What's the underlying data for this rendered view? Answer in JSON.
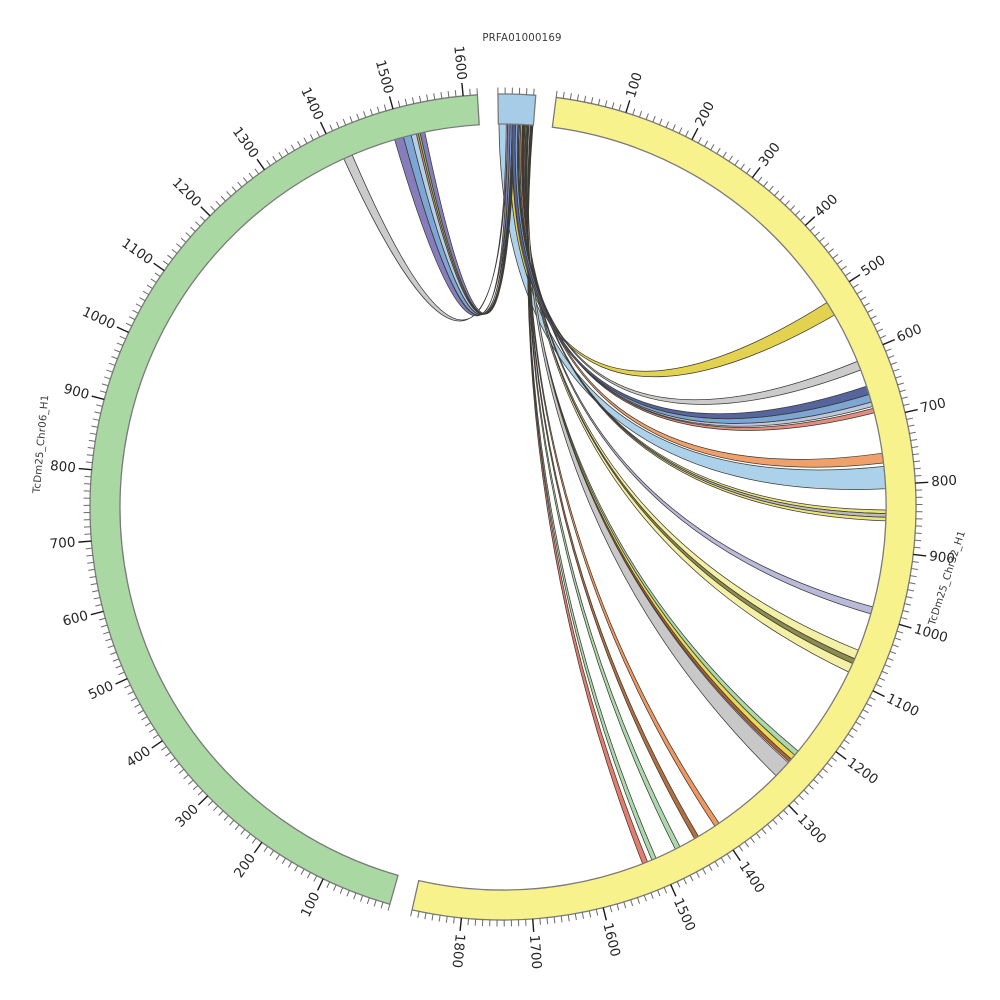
{
  "figure": {
    "kind": "circos-synteny-plot",
    "background": "#ffffff"
  },
  "styles": {
    "band_stroke": "#7a7a7a",
    "tick_color_minor": "#6a6a6a",
    "tick_color_major": "#1a1a1a",
    "tick_label_color": "#262626",
    "ribbon_stroke": "#3d3a35",
    "name_label_color": "#3a3a3a"
  },
  "chart_data": {
    "type": "chord",
    "layout": "circular",
    "deg_per_unit": 0.0991,
    "band_inner_radius": 383,
    "band_outer_radius": 413,
    "chromosomes": [
      {
        "id": "PRFA01000169",
        "label": "PRFA01000169",
        "length": 53,
        "color": "#a6cce7",
        "start_deg": 359.3,
        "tick_label_values": []
      },
      {
        "id": "TcDm25_Chr32_H1",
        "label": "TcDm25_Chr32_H1",
        "length": 1870,
        "color": "#f8f28c",
        "start_deg": 7.4,
        "tick_label_values": [
          100,
          200,
          300,
          400,
          500,
          600,
          700,
          800,
          900,
          1000,
          1100,
          1200,
          1300,
          1400,
          1500,
          1600,
          1700,
          1800
        ]
      },
      {
        "id": "TcDm25_Chr06_H1",
        "label": "TcDm25_Chr06_H1",
        "length": 1620,
        "color": "#a9d8a3",
        "start_deg": 195.9,
        "tick_label_values": [
          100,
          200,
          300,
          400,
          500,
          600,
          700,
          800,
          900,
          1000,
          1100,
          1200,
          1300,
          1400,
          1500,
          1600
        ]
      }
    ],
    "ticks": {
      "minor_every": 10,
      "major_every": 100
    },
    "link_source": "PRFA01000169",
    "links": [
      {
        "s": [
          1,
          15
        ],
        "t": "TcDm25_Chr32_H1",
        "r": [
          772,
          806
        ],
        "c": "#a9cfe9"
      },
      {
        "s": [
          16,
          21
        ],
        "t": "TcDm25_Chr32_H1",
        "r": [
          508,
          530
        ],
        "c": "#e2cf4a"
      },
      {
        "s": [
          12,
          14
        ],
        "t": "TcDm25_Chr06_H1",
        "r": [
          1408,
          1422
        ],
        "c": "#c9c9c9"
      },
      {
        "s": [
          14,
          18
        ],
        "t": "TcDm25_Chr06_H1",
        "r": [
          1490,
          1504
        ],
        "c": "#8279ba"
      },
      {
        "s": [
          18,
          21
        ],
        "t": "TcDm25_Chr06_H1",
        "r": [
          1504,
          1516
        ],
        "c": "#79a3d3"
      },
      {
        "s": [
          21,
          22.5
        ],
        "t": "TcDm25_Chr06_H1",
        "r": [
          1516,
          1524
        ],
        "c": "#aecfe8"
      },
      {
        "s": [
          22.5,
          23.2
        ],
        "t": "TcDm25_Chr06_H1",
        "r": [
          1524,
          1527
        ],
        "c": "#e8874b"
      },
      {
        "s": [
          23.2,
          24
        ],
        "t": "TcDm25_Chr06_H1",
        "r": [
          1527,
          1530
        ],
        "c": "#7cbf7c"
      },
      {
        "s": [
          24,
          25.5
        ],
        "t": "TcDm25_Chr06_H1",
        "r": [
          1530,
          1537
        ],
        "c": "#8279ba"
      },
      {
        "s": [
          32,
          34
        ],
        "t": "TcDm25_Chr32_H1",
        "r": [
          608,
          622
        ],
        "c": "#c9c9c9"
      },
      {
        "s": [
          34,
          36.5
        ],
        "t": "TcDm25_Chr32_H1",
        "r": [
          752,
          767
        ],
        "c": "#f09e66"
      },
      {
        "s": [
          36.5,
          37.5
        ],
        "t": "TcDm25_Chr32_H1",
        "r": [
          838,
          843.5
        ],
        "c": "#ece277"
      },
      {
        "s": [
          37.5,
          38.5
        ],
        "t": "TcDm25_Chr32_H1",
        "r": [
          843.5,
          849
        ],
        "c": "#b9b9b9"
      },
      {
        "s": [
          38.5,
          39.5
        ],
        "t": "TcDm25_Chr32_H1",
        "r": [
          849,
          854.5
        ],
        "c": "#ece277"
      },
      {
        "s": [
          39.5,
          40.5
        ],
        "t": "TcDm25_Chr32_H1",
        "r": [
          986,
          997
        ],
        "c": "#b7b7d9"
      },
      {
        "s": [
          40.5,
          42
        ],
        "t": "TcDm25_Chr32_H1",
        "r": [
          1055,
          1069
        ],
        "c": "#f4f0a2"
      },
      {
        "s": [
          42,
          42.8
        ],
        "t": "TcDm25_Chr32_H1",
        "r": [
          1069,
          1077
        ],
        "c": "#8a8748"
      },
      {
        "s": [
          42.8,
          44.2
        ],
        "t": "TcDm25_Chr32_H1",
        "r": [
          1077,
          1091
        ],
        "c": "#f4f0a2"
      },
      {
        "s": [
          44.2,
          45
        ],
        "t": "TcDm25_Chr32_H1",
        "r": [
          1233,
          1241
        ],
        "c": "#a8d8a8"
      },
      {
        "s": [
          45,
          45.8
        ],
        "t": "TcDm25_Chr32_H1",
        "r": [
          1241,
          1249
        ],
        "c": "#e8d84f"
      },
      {
        "s": [
          45.8,
          46.4
        ],
        "t": "TcDm25_Chr32_H1",
        "r": [
          1249,
          1254
        ],
        "c": "#b05c33"
      },
      {
        "s": [
          46.4,
          48.6
        ],
        "t": "TcDm25_Chr32_H1",
        "r": [
          1256,
          1283
        ],
        "c": "#c6c6c6"
      },
      {
        "s": [
          48.6,
          49.4
        ],
        "t": "TcDm25_Chr32_H1",
        "r": [
          1395,
          1403
        ],
        "c": "#f0945a"
      },
      {
        "s": [
          49.4,
          50.1
        ],
        "t": "TcDm25_Chr32_H1",
        "r": [
          1432,
          1439
        ],
        "c": "#b06a3a"
      },
      {
        "s": [
          50.1,
          50.9
        ],
        "t": "TcDm25_Chr32_H1",
        "r": [
          1464,
          1472
        ],
        "c": "#a8d8a8"
      },
      {
        "s": [
          50.9,
          51.7
        ],
        "t": "TcDm25_Chr32_H1",
        "r": [
          1504,
          1511
        ],
        "c": "#a8d8a8"
      },
      {
        "s": [
          51.7,
          52.4
        ],
        "t": "TcDm25_Chr32_H1",
        "r": [
          1518,
          1526
        ],
        "c": "#e4796a"
      },
      {
        "s": [
          31,
          32
        ],
        "t": "TcDm25_Chr32_H1",
        "r": [
          683,
          690
        ],
        "c": "#e28a78"
      },
      {
        "s": [
          29.5,
          31
        ],
        "t": "TcDm25_Chr32_H1",
        "r": [
          673,
          680
        ],
        "c": "#b9c6da"
      },
      {
        "s": [
          26,
          29.5
        ],
        "t": "TcDm25_Chr32_H1",
        "r": [
          661,
          673
        ],
        "c": "#79a3d3"
      },
      {
        "s": [
          21,
          26
        ],
        "t": "TcDm25_Chr32_H1",
        "r": [
          648,
          661
        ],
        "c": "#50609a"
      }
    ]
  }
}
